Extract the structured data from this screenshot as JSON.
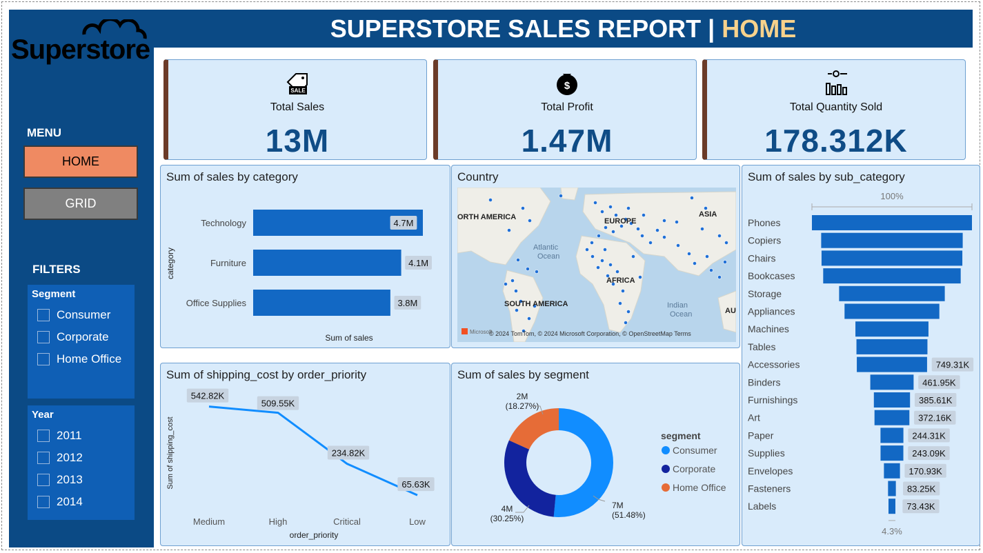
{
  "header": {
    "title_main": "SUPERSTORE SALES REPORT | ",
    "title_highlight": "HOME"
  },
  "logo": {
    "text": "Superstore"
  },
  "menu": {
    "heading": "MENU",
    "home_label": "HOME",
    "grid_label": "GRID"
  },
  "filters": {
    "heading": "FILTERS",
    "segment": {
      "label": "Segment",
      "options": [
        "Consumer",
        "Corporate",
        "Home Office"
      ]
    },
    "year": {
      "label": "Year",
      "options": [
        "2011",
        "2012",
        "2013",
        "2014"
      ]
    }
  },
  "kpis": [
    {
      "label": "Total Sales",
      "value": "13M",
      "icon": "sale-tag-icon"
    },
    {
      "label": "Total Profit",
      "value": "1.47M",
      "icon": "money-bag-icon"
    },
    {
      "label": "Total Quantity Sold",
      "value": "178.312K",
      "icon": "quantity-chart-icon"
    }
  ],
  "colors": {
    "accent": "#0b4a85",
    "bar": "#1268c4",
    "home_btn": "#ef8a62",
    "grid_btn": "#808080"
  },
  "map": {
    "title": "Country",
    "labels": [
      "ORTH AMERICA",
      "EUROPE",
      "ASIA",
      "Atlantic",
      "Ocean",
      "AFRICA",
      "SOUTH AMERICA",
      "Indian",
      "Ocean",
      "AU"
    ],
    "attribution": "© 2024 TomTom, © 2024 Microsoft Corporation, © OpenStreetMap  Terms",
    "brand": "Microsoft"
  },
  "chart_data": [
    {
      "type": "bar",
      "title": "Sum of sales by category",
      "categories": [
        "Technology",
        "Furniture",
        "Office Supplies"
      ],
      "values": [
        4.7,
        4.1,
        3.8
      ],
      "labels": [
        "4.7M",
        "4.1M",
        "3.8M"
      ],
      "xlabel": "Sum of sales",
      "ylabel": "category"
    },
    {
      "type": "line",
      "title": "Sum of shipping_cost by order_priority",
      "categories": [
        "Medium",
        "High",
        "Critical",
        "Low"
      ],
      "values": [
        542.82,
        509.55,
        234.82,
        65.63
      ],
      "labels": [
        "542.82K",
        "509.55K",
        "234.82K",
        "65.63K"
      ],
      "xlabel": "order_priority",
      "ylabel": "Sum of shipping_cost"
    },
    {
      "type": "pie",
      "title": "Sum of sales by segment",
      "legend_title": "segment",
      "categories": [
        "Consumer",
        "Corporate",
        "Home Office"
      ],
      "values": [
        51.48,
        30.25,
        18.27
      ],
      "labels": [
        "7M",
        "4M",
        "2M"
      ],
      "percent_labels": [
        "(51.48%)",
        "(30.25%)",
        "(18.27%)"
      ],
      "colors": [
        "#118dff",
        "#12239e",
        "#e66c37"
      ]
    },
    {
      "type": "bar",
      "title": "Sum of sales by sub_category",
      "top_label": "100%",
      "bottom_label": "4.3%",
      "categories": [
        "Phones",
        "Copiers",
        "Chairs",
        "Bookcases",
        "Storage",
        "Appliances",
        "Machines",
        "Tables",
        "Accessories",
        "Binders",
        "Furnishings",
        "Art",
        "Paper",
        "Supplies",
        "Envelopes",
        "Fasteners",
        "Labels"
      ],
      "values": [
        1706.82,
        1509.44,
        1501.68,
        1466.57,
        1127.09,
        1011.06,
        779.06,
        757.04,
        749.31,
        461.95,
        385.61,
        372.16,
        244.31,
        243.09,
        170.93,
        83.25,
        73.43
      ],
      "labels": [
        "",
        "",
        "",
        "",
        "",
        "",
        "",
        "",
        "749.31K",
        "461.95K",
        "385.61K",
        "372.16K",
        "244.31K",
        "243.09K",
        "170.93K",
        "83.25K",
        "73.43K"
      ]
    }
  ]
}
